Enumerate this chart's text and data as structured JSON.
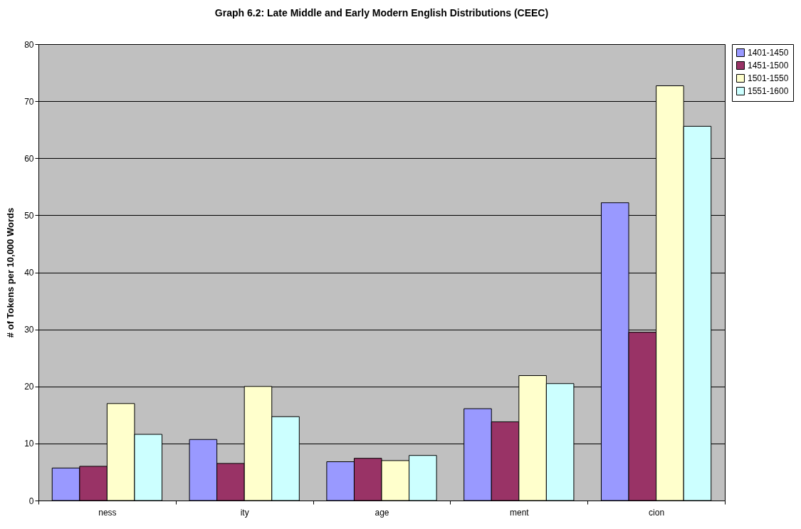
{
  "chart_data": {
    "type": "bar",
    "title": "Graph 6.2: Late Middle and Early Modern English Distributions (CEEC)",
    "ylabel": "# of Tokens per 10,000 Words",
    "categories": [
      "ness",
      "ity",
      "age",
      "ment",
      "cion"
    ],
    "series": [
      {
        "name": "1401-1450",
        "color": "#9999ff",
        "values": [
          5.7,
          10.7,
          6.8,
          16.1,
          52.2
        ]
      },
      {
        "name": "1451-1500",
        "color": "#993366",
        "values": [
          6.0,
          6.5,
          7.4,
          13.8,
          29.5
        ]
      },
      {
        "name": "1501-1550",
        "color": "#ffffcc",
        "values": [
          17.0,
          20.0,
          7.0,
          21.9,
          72.7
        ]
      },
      {
        "name": "1551-1600",
        "color": "#ccffff",
        "values": [
          11.6,
          14.7,
          7.9,
          20.5,
          65.6
        ]
      }
    ],
    "ylim": [
      0,
      80
    ],
    "yticks": [
      0,
      10,
      20,
      30,
      40,
      50,
      60,
      70,
      80
    ],
    "grid": "y",
    "legend": "right"
  }
}
